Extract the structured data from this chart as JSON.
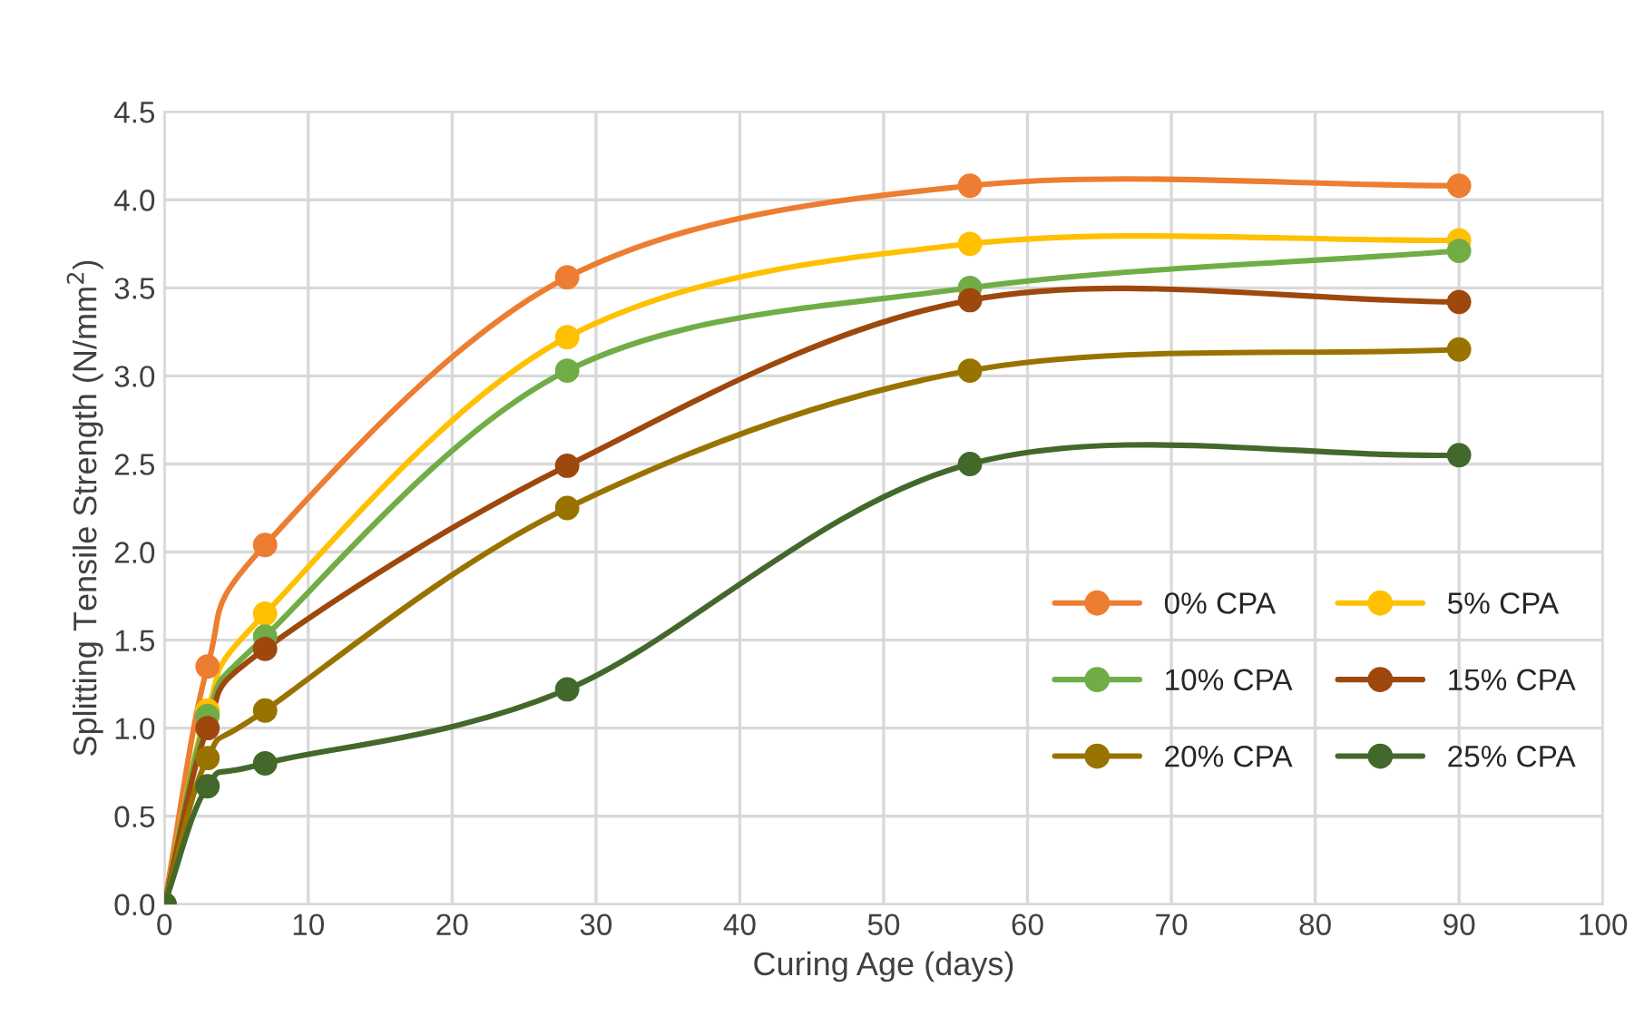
{
  "chart_data": {
    "type": "line",
    "xlabel": "Curing Age (days)",
    "ylabel": "Splitting Tensile Strength (N/mm$^{2}$)",
    "x": [
      0,
      3,
      7,
      28,
      56,
      90
    ],
    "xlim": [
      0,
      100
    ],
    "xticks": [
      0,
      10,
      20,
      30,
      40,
      50,
      60,
      70,
      80,
      90,
      100
    ],
    "ylim": [
      0,
      4.5
    ],
    "yticks": [
      {
        "value": 0,
        "label": "0.0"
      },
      {
        "value": 0.5,
        "label": "0.5"
      },
      {
        "value": 1,
        "label": "1.0"
      },
      {
        "value": 1.5,
        "label": "1.5"
      },
      {
        "value": 2,
        "label": "2.0"
      },
      {
        "value": 2.5,
        "label": "2.5"
      },
      {
        "value": 3,
        "label": "3.0"
      },
      {
        "value": 3.5,
        "label": "3.5"
      },
      {
        "value": 4,
        "label": "4.0"
      },
      {
        "value": 4.5,
        "label": "4.5"
      }
    ],
    "grid": true,
    "legend": "right",
    "marker": "circle",
    "line_style": "solid",
    "series": [
      {
        "name": "0% CPA",
        "color": "#ed7d31",
        "values": [
          0,
          1.35,
          2.04,
          3.56,
          4.08,
          4.08
        ]
      },
      {
        "name": "5% CPA",
        "color": "#ffc000",
        "values": [
          0,
          1.1,
          1.65,
          3.22,
          3.75,
          3.77
        ]
      },
      {
        "name": "10% CPA",
        "color": "#70ad47",
        "values": [
          0,
          1.07,
          1.52,
          3.03,
          3.5,
          3.71
        ]
      },
      {
        "name": "15% CPA",
        "color": "#9e480e",
        "values": [
          0,
          1.0,
          1.45,
          2.49,
          3.43,
          3.42
        ]
      },
      {
        "name": "20% CPA",
        "color": "#997300",
        "values": [
          0,
          0.83,
          1.1,
          2.25,
          3.03,
          3.15
        ]
      },
      {
        "name": "25% CPA",
        "color": "#43682b",
        "values": [
          0,
          0.67,
          0.8,
          1.22,
          2.5,
          2.55
        ]
      }
    ]
  }
}
